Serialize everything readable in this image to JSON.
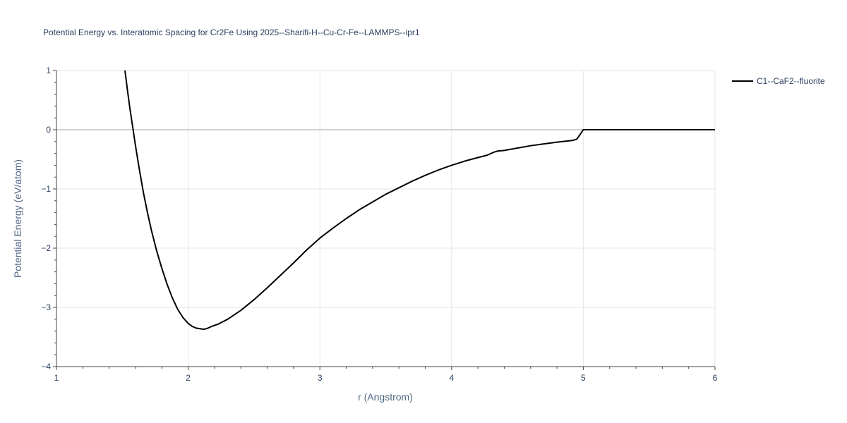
{
  "chart_data": {
    "type": "line",
    "title": "Potential Energy vs. Interatomic Spacing for Cr2Fe Using 2025--Sharifi-H--Cu-Cr-Fe--LAMMPS--ipr1",
    "xlabel": "r (Angstrom)",
    "ylabel": "Potential Energy (eV/atom)",
    "xlim": [
      1,
      6
    ],
    "ylim": [
      -4,
      1
    ],
    "x_ticks": [
      1,
      2,
      3,
      4,
      5,
      6
    ],
    "x_tick_labels": [
      "1",
      "2",
      "3",
      "4",
      "5",
      "6"
    ],
    "y_ticks": [
      1,
      0,
      -1,
      -2,
      -3,
      -4
    ],
    "y_tick_labels": [
      "1",
      "0",
      "−1",
      "−2",
      "−3",
      "−4"
    ],
    "grid": true,
    "legend_position": "top-right, outside plot",
    "series": [
      {
        "name": "C1--CaF2--fluorite",
        "color": "#000000",
        "x": [
          1.52,
          1.54,
          1.56,
          1.58,
          1.6,
          1.63,
          1.66,
          1.69,
          1.72,
          1.76,
          1.8,
          1.84,
          1.88,
          1.92,
          1.96,
          2.0,
          2.03,
          2.06,
          2.09,
          2.12,
          2.15,
          2.18,
          2.23,
          2.3,
          2.4,
          2.5,
          2.6,
          2.7,
          2.8,
          2.9,
          3.0,
          3.1,
          3.2,
          3.3,
          3.4,
          3.5,
          3.6,
          3.7,
          3.8,
          3.9,
          4.0,
          4.1,
          4.2,
          4.27,
          4.3,
          4.32,
          4.35,
          4.4,
          4.5,
          4.6,
          4.7,
          4.8,
          4.88,
          4.92,
          4.95,
          4.97,
          5.0,
          5.5,
          6.0
        ],
        "y": [
          1.0,
          0.65,
          0.32,
          0.03,
          -0.27,
          -0.68,
          -1.06,
          -1.39,
          -1.69,
          -2.04,
          -2.34,
          -2.61,
          -2.84,
          -3.03,
          -3.17,
          -3.27,
          -3.32,
          -3.35,
          -3.36,
          -3.37,
          -3.35,
          -3.32,
          -3.28,
          -3.2,
          -3.05,
          -2.87,
          -2.67,
          -2.46,
          -2.25,
          -2.03,
          -1.83,
          -1.66,
          -1.5,
          -1.35,
          -1.22,
          -1.09,
          -0.98,
          -0.87,
          -0.77,
          -0.68,
          -0.6,
          -0.53,
          -0.47,
          -0.43,
          -0.4,
          -0.38,
          -0.36,
          -0.35,
          -0.31,
          -0.27,
          -0.24,
          -0.21,
          -0.19,
          -0.18,
          -0.16,
          -0.1,
          0.0,
          0.0,
          0.0
        ]
      }
    ]
  }
}
